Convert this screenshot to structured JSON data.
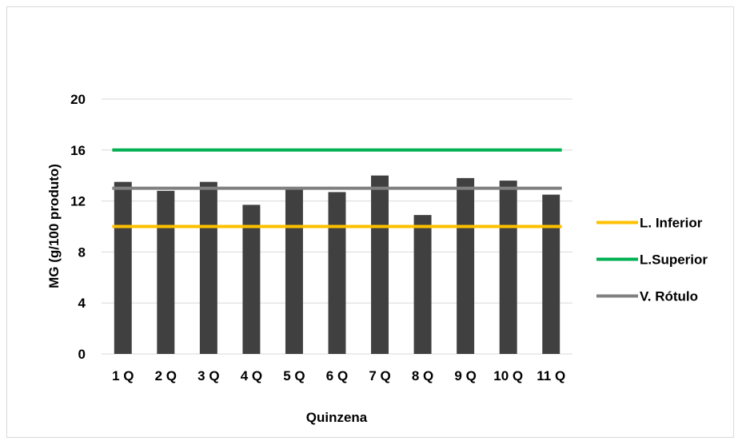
{
  "chart_data": {
    "type": "bar",
    "xlabel": "Quinzena",
    "ylabel": "MG (g/100 produto)",
    "categories": [
      "1 Q",
      "2 Q",
      "3 Q",
      "4 Q",
      "5 Q",
      "6 Q",
      "7 Q",
      "8 Q",
      "9 Q",
      "10 Q",
      "11 Q"
    ],
    "values": [
      13.5,
      12.8,
      13.5,
      11.7,
      13.0,
      12.7,
      14.0,
      10.9,
      13.8,
      13.6,
      12.5
    ],
    "bar_color": "#404040",
    "ylim": [
      0,
      20
    ],
    "yticks": [
      0,
      4,
      8,
      12,
      16,
      20
    ],
    "grid": true,
    "legend_position": "right",
    "reference_lines": [
      {
        "name": "L. Inferior",
        "value": 10,
        "color": "#FFC000"
      },
      {
        "name": "L.Superior",
        "value": 16,
        "color": "#00B050"
      },
      {
        "name": "V. Rótulo",
        "value": 13,
        "color": "#808080"
      }
    ]
  }
}
